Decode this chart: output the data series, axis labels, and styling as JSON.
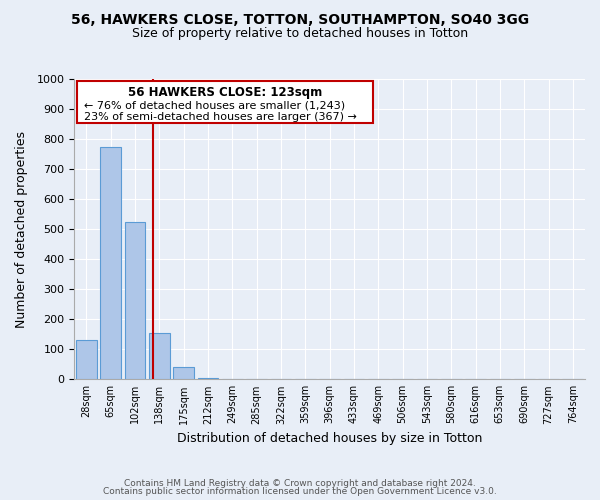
{
  "title": "56, HAWKERS CLOSE, TOTTON, SOUTHAMPTON, SO40 3GG",
  "subtitle": "Size of property relative to detached houses in Totton",
  "xlabel": "Distribution of detached houses by size in Totton",
  "ylabel": "Number of detached properties",
  "bar_labels": [
    "28sqm",
    "65sqm",
    "102sqm",
    "138sqm",
    "175sqm",
    "212sqm",
    "249sqm",
    "285sqm",
    "322sqm",
    "359sqm",
    "396sqm",
    "433sqm",
    "469sqm",
    "506sqm",
    "543sqm",
    "580sqm",
    "616sqm",
    "653sqm",
    "690sqm",
    "727sqm",
    "764sqm"
  ],
  "bar_values": [
    130,
    775,
    525,
    155,
    40,
    5,
    0,
    0,
    0,
    0,
    0,
    0,
    0,
    0,
    0,
    0,
    0,
    0,
    0,
    0,
    0
  ],
  "bar_color": "#aec6e8",
  "bar_edge_color": "#5b9bd5",
  "ylim": [
    0,
    1000
  ],
  "yticks": [
    0,
    100,
    200,
    300,
    400,
    500,
    600,
    700,
    800,
    900,
    1000
  ],
  "vline_x": 2.73,
  "vline_color": "#c00000",
  "annotation_title": "56 HAWKERS CLOSE: 123sqm",
  "annotation_line1": "← 76% of detached houses are smaller (1,243)",
  "annotation_line2": "23% of semi-detached houses are larger (367) →",
  "annotation_box_color": "#c00000",
  "footer_line1": "Contains HM Land Registry data © Crown copyright and database right 2024.",
  "footer_line2": "Contains public sector information licensed under the Open Government Licence v3.0.",
  "background_color": "#e8eef7",
  "plot_bg_color": "#e8eef7"
}
